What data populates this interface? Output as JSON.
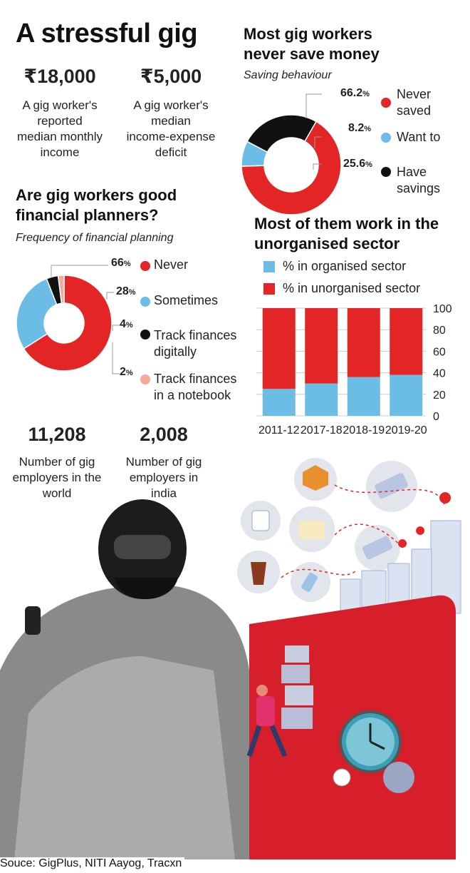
{
  "title": "A stressful gig",
  "stats": [
    {
      "value": "₹18,000",
      "caption": [
        "A gig worker's",
        "reported",
        "median monthly",
        "income"
      ]
    },
    {
      "value": "₹5,000",
      "caption": [
        "A gig worker's",
        "median",
        "income-expense",
        "deficit"
      ]
    },
    {
      "value": "11,208",
      "caption": [
        "Number of gig",
        "employers in the",
        "world"
      ]
    },
    {
      "value": "2,008",
      "caption": [
        "Number of gig",
        "employers in",
        "india"
      ]
    }
  ],
  "source": "Souce: GigPlus, NITI Aayog, Tracxn",
  "colors": {
    "red": "#e32526",
    "blue": "#6cbde6",
    "black": "#111111",
    "pink": "#f4a99a",
    "grid": "#cccccc"
  },
  "chart_data": [
    {
      "type": "pie",
      "title": "Most gig workers never save money",
      "subtitle": "Saving behaviour",
      "slices": [
        {
          "label": "Never saved",
          "value": 66.2,
          "display": "66.2",
          "color": "#e32526"
        },
        {
          "label": "Want to",
          "value": 8.2,
          "display": "8.2",
          "color": "#6cbde6"
        },
        {
          "label": "Have savings",
          "value": 25.6,
          "display": "25.6",
          "color": "#111111"
        }
      ]
    },
    {
      "type": "pie",
      "title": "Are gig workers good financial planners?",
      "subtitle": "Frequency of financial planning",
      "slices": [
        {
          "label": "Never",
          "value": 66,
          "display": "66",
          "color": "#e32526"
        },
        {
          "label": "Sometimes",
          "value": 28,
          "display": "28",
          "color": "#6cbde6"
        },
        {
          "label": "Track finances digitally",
          "value": 4,
          "display": "4",
          "color": "#111111"
        },
        {
          "label": "Track finances in a notebook",
          "value": 2,
          "display": "2",
          "color": "#f4a99a"
        }
      ]
    },
    {
      "type": "bar",
      "stacked": true,
      "title": "Most of them work in the unorganised sector",
      "categories": [
        "2011-12",
        "2017-18",
        "2018-19",
        "2019-20"
      ],
      "series": [
        {
          "name": "% in organised sector",
          "values": [
            25,
            30,
            36,
            38
          ],
          "color": "#6cbde6"
        },
        {
          "name": "% in unorganised sector",
          "values": [
            75,
            70,
            64,
            62
          ],
          "color": "#e32526"
        }
      ],
      "ylim": [
        0,
        100
      ],
      "yticks": [
        "0",
        "20",
        "40",
        "60",
        "80",
        "100"
      ],
      "grid": true
    }
  ]
}
